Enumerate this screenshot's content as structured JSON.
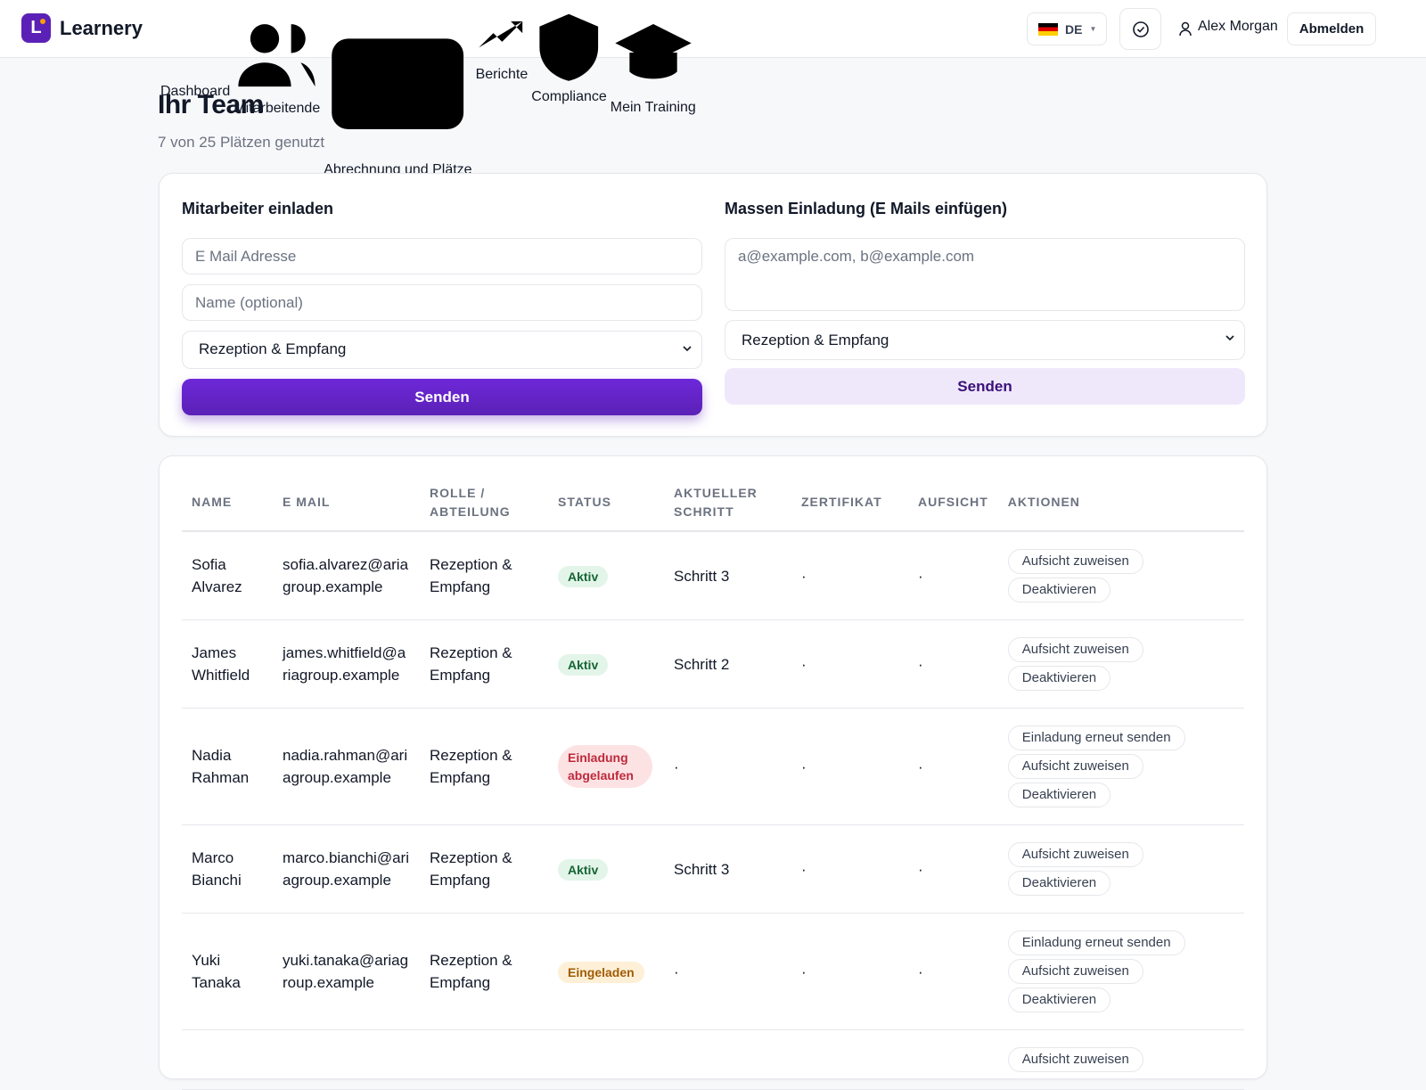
{
  "nav": {
    "brand": "Learnery",
    "items": [
      "Dashboard",
      "Mitarbeitende",
      "Abrechnung und Plätze",
      "Berichte",
      "Compliance",
      "Mein Training"
    ],
    "active_item": 1,
    "lang": "DE",
    "user": "Alex Morgan",
    "logout": "Abmelden"
  },
  "header": {
    "title": "Ihr Team",
    "subtitle": "7 von 25 Plätzen genutzt"
  },
  "invite": {
    "title": "Mitarbeiter einladen",
    "email_placeholder": "E Mail Adresse",
    "name_placeholder": "Name (optional)",
    "department": "Rezeption & Empfang",
    "button": "Senden"
  },
  "bulk": {
    "title": "Massen Einladung (E Mails einfügen)",
    "placeholder": "a@example.com, b@example.com",
    "department": "Rezeption & Empfang",
    "button": "Senden"
  },
  "table": {
    "columns": [
      "NAME",
      "E MAIL",
      "ROLLE / ABTEILUNG",
      "STATUS",
      "AKTUELLER SCHRITT",
      "ZERTIFIKAT",
      "AUFSICHT",
      "AKTIONEN"
    ],
    "rows": [
      {
        "name": "Sofia Alvarez",
        "email": "sofia.alvarez@ariagroup.example",
        "role": "Rezeption & Empfang",
        "status": "Aktiv",
        "status_color": "green",
        "step": "Schritt 3",
        "certificate": "·",
        "supervision": "·",
        "actions": [
          "Aufsicht zuweisen",
          "Deaktivieren"
        ]
      },
      {
        "name": "James Whitfield",
        "email": "james.whitfield@ariagroup.example",
        "role": "Rezeption & Empfang",
        "status": "Aktiv",
        "status_color": "green",
        "step": "Schritt 2",
        "certificate": "·",
        "supervision": "·",
        "actions": [
          "Aufsicht zuweisen",
          "Deaktivieren"
        ]
      },
      {
        "name": "Nadia Rahman",
        "email": "nadia.rahman@ariagroup.example",
        "role": "Rezeption & Empfang",
        "status": "Einladung abgelaufen",
        "status_color": "red",
        "step": "·",
        "certificate": "·",
        "supervision": "·",
        "actions": [
          "Einladung erneut senden",
          "Aufsicht zuweisen",
          "Deaktivieren"
        ]
      },
      {
        "name": "Marco Bianchi",
        "email": "marco.bianchi@ariagroup.example",
        "role": "Rezeption & Empfang",
        "status": "Aktiv",
        "status_color": "green",
        "step": "Schritt 3",
        "certificate": "·",
        "supervision": "·",
        "actions": [
          "Aufsicht zuweisen",
          "Deaktivieren"
        ]
      },
      {
        "name": "Yuki Tanaka",
        "email": "yuki.tanaka@ariagroup.example",
        "role": "Rezeption & Empfang",
        "status": "Eingeladen",
        "status_color": "amber",
        "step": "·",
        "certificate": "·",
        "supervision": "·",
        "actions": [
          "Einladung erneut senden",
          "Aufsicht zuweisen",
          "Deaktivieren"
        ]
      },
      {
        "actions": [
          "Aufsicht zuweisen"
        ]
      }
    ]
  }
}
